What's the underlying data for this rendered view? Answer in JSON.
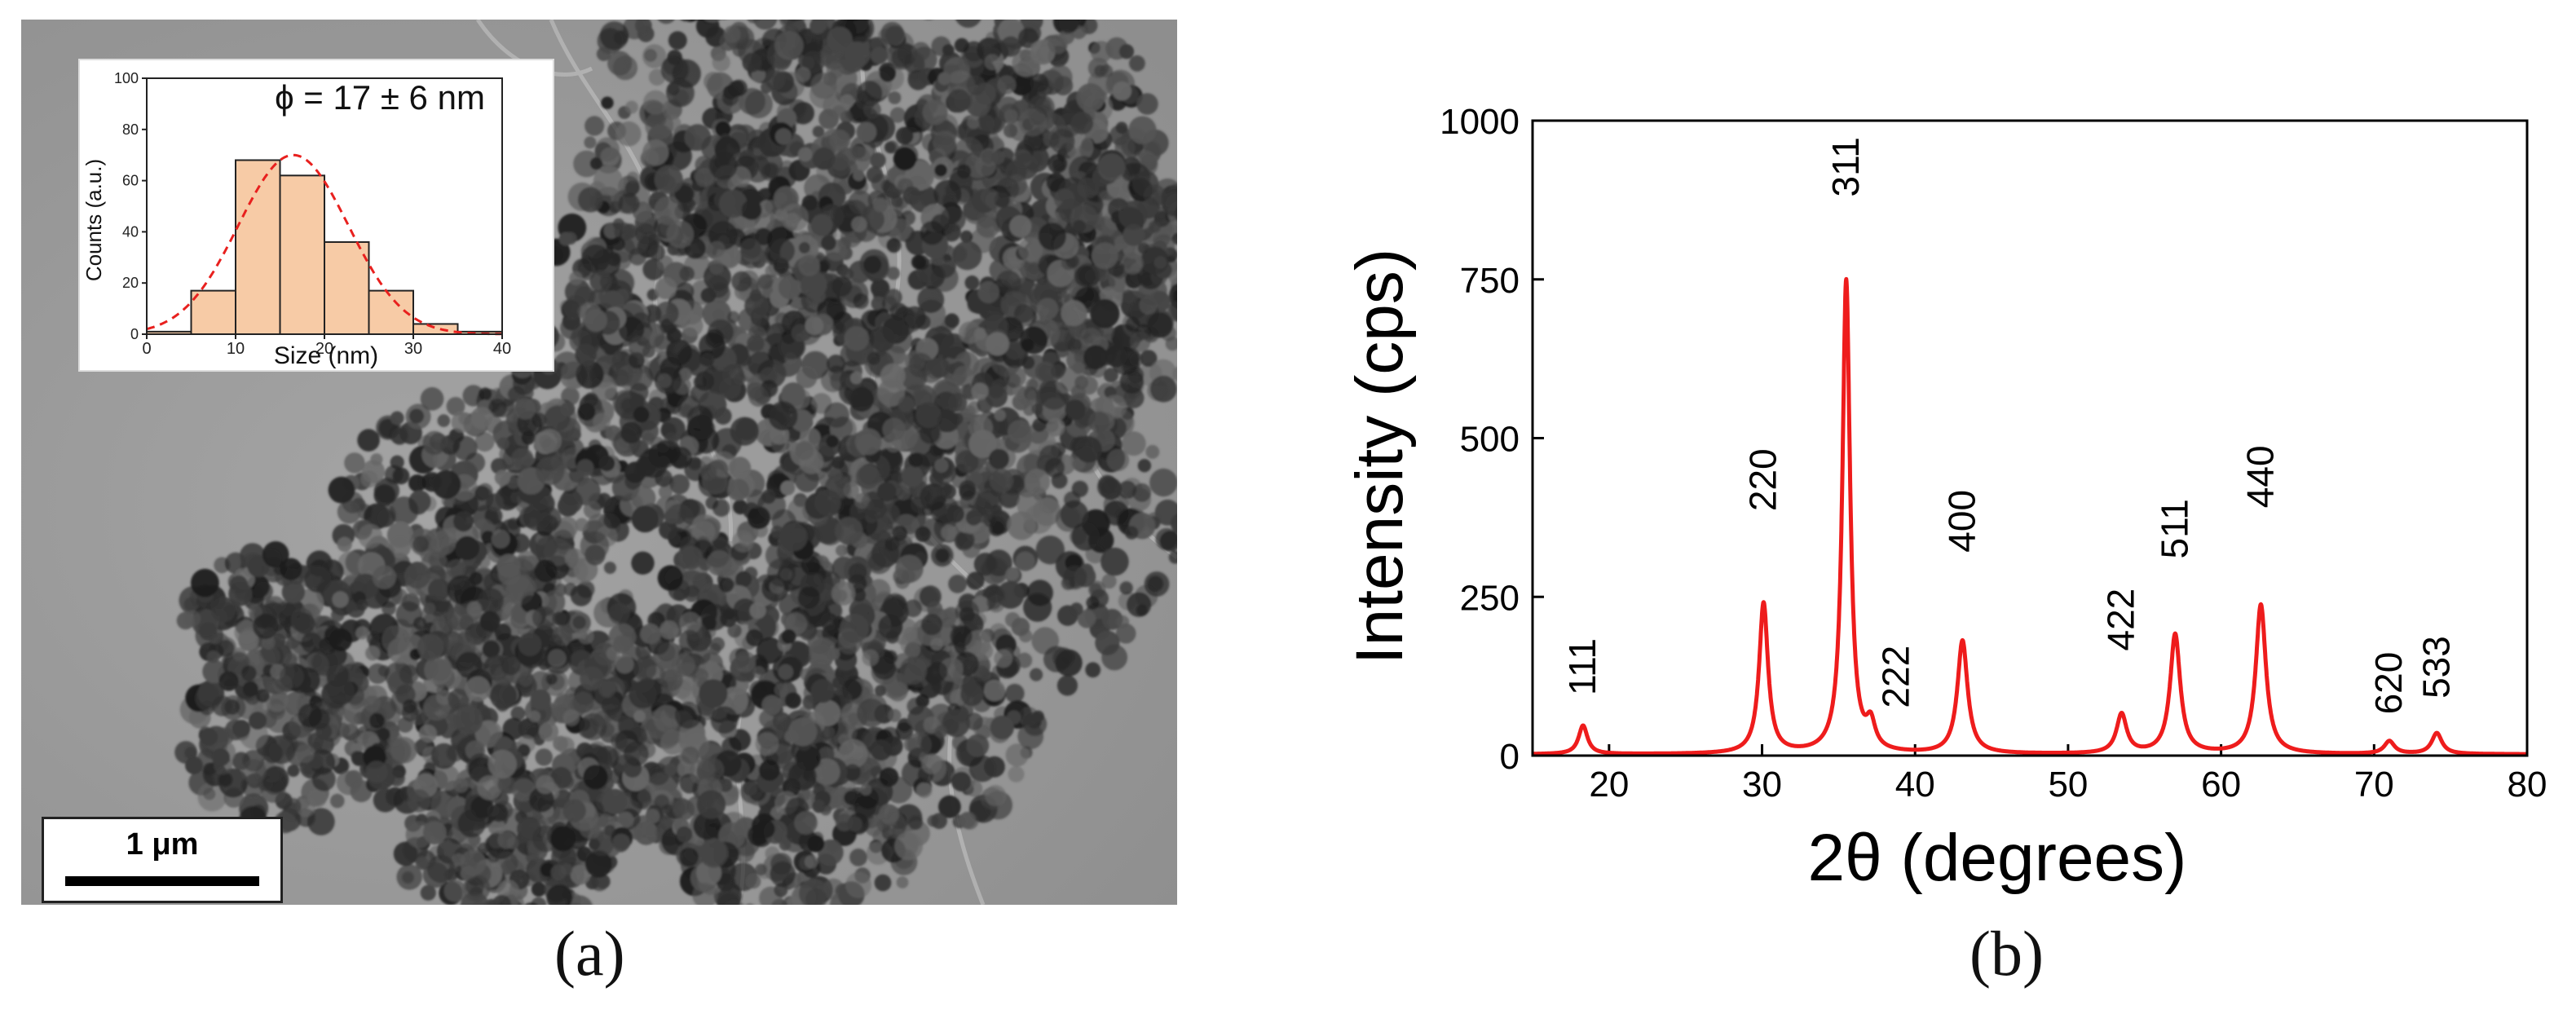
{
  "panels": {
    "a": {
      "label": "(a)"
    },
    "b": {
      "label": "(b)"
    }
  },
  "tem": {
    "scale_bar": "1 μm"
  },
  "colors": {
    "xrd_line": "#ee1c1c",
    "hist_fill": "#f7cba6",
    "hist_edge": "#222222",
    "fit_line": "#e8201e",
    "tem_background": "#9a9a9a",
    "particle": "#2e2e2e"
  },
  "chart_data": [
    {
      "type": "bar",
      "role": "inset histogram",
      "annotation": "ϕ = 17 ± 6 nm",
      "xlabel": "Size (nm)",
      "ylabel": "Counts (a.u.)",
      "xlim": [
        0,
        40
      ],
      "ylim": [
        0,
        100
      ],
      "x_ticks": [
        0,
        10,
        20,
        30,
        40
      ],
      "y_ticks": [
        0,
        20,
        40,
        60,
        80,
        100
      ],
      "bins": [
        {
          "from": 0,
          "to": 5,
          "value": 1
        },
        {
          "from": 5,
          "to": 10,
          "value": 17
        },
        {
          "from": 10,
          "to": 15,
          "value": 68
        },
        {
          "from": 15,
          "to": 20,
          "value": 62
        },
        {
          "from": 20,
          "to": 25,
          "value": 36
        },
        {
          "from": 25,
          "to": 30,
          "value": 17
        },
        {
          "from": 30,
          "to": 35,
          "value": 4
        },
        {
          "from": 35,
          "to": 40,
          "value": 1
        }
      ],
      "fit": {
        "type": "gaussian",
        "amplitude": 70,
        "center": 16.5,
        "sigma": 6.2,
        "style": "dashed"
      }
    },
    {
      "type": "line",
      "role": "XRD pattern",
      "xlabel": "2θ (degrees)",
      "ylabel": "Intensity (cps)",
      "xlim": [
        15,
        80
      ],
      "ylim": [
        0,
        1000
      ],
      "x_ticks": [
        20,
        30,
        40,
        50,
        60,
        70,
        80
      ],
      "y_ticks": [
        0,
        250,
        500,
        750,
        1000
      ],
      "baseline": 2,
      "peaks": [
        {
          "label": "111",
          "x": 18.3,
          "y": 45,
          "width": 0.35
        },
        {
          "label": "220",
          "x": 30.1,
          "y": 237,
          "width": 0.35
        },
        {
          "label": "311",
          "x": 35.5,
          "y": 745,
          "width": 0.3
        },
        {
          "label": "222",
          "x": 37.1,
          "y": 40,
          "width": 0.35
        },
        {
          "label": "400",
          "x": 43.1,
          "y": 178,
          "width": 0.4
        },
        {
          "label": "422",
          "x": 53.5,
          "y": 62,
          "width": 0.4
        },
        {
          "label": "511",
          "x": 57.0,
          "y": 188,
          "width": 0.4
        },
        {
          "label": "440",
          "x": 62.6,
          "y": 235,
          "width": 0.4
        },
        {
          "label": "620",
          "x": 71.0,
          "y": 20,
          "width": 0.4
        },
        {
          "label": "533",
          "x": 74.1,
          "y": 33,
          "width": 0.4
        }
      ],
      "peak_labels": [
        {
          "text": "111",
          "x": 18.3,
          "y": 95
        },
        {
          "text": "220",
          "x": 30.1,
          "y": 385
        },
        {
          "text": "311",
          "x": 35.5,
          "y": 880
        },
        {
          "text": "222",
          "x": 38.8,
          "y": 75
        },
        {
          "text": "400",
          "x": 43.1,
          "y": 320
        },
        {
          "text": "422",
          "x": 53.5,
          "y": 165
        },
        {
          "text": "511",
          "x": 57.0,
          "y": 310
        },
        {
          "text": "440",
          "x": 62.6,
          "y": 390
        },
        {
          "text": "620",
          "x": 71.0,
          "y": 65
        },
        {
          "text": "533",
          "x": 74.1,
          "y": 90
        }
      ]
    }
  ]
}
